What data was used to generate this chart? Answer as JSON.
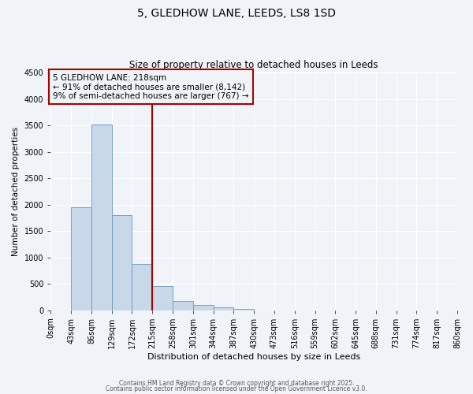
{
  "title": "5, GLEDHOW LANE, LEEDS, LS8 1SD",
  "subtitle": "Size of property relative to detached houses in Leeds",
  "xlabel": "Distribution of detached houses by size in Leeds",
  "ylabel": "Number of detached properties",
  "bin_edges": [
    0,
    43,
    86,
    129,
    172,
    215,
    258,
    301,
    344,
    387,
    430,
    473,
    516,
    559,
    602,
    645,
    688,
    731,
    774,
    817,
    860
  ],
  "bin_labels": [
    "0sqm",
    "43sqm",
    "86sqm",
    "129sqm",
    "172sqm",
    "215sqm",
    "258sqm",
    "301sqm",
    "344sqm",
    "387sqm",
    "430sqm",
    "473sqm",
    "516sqm",
    "559sqm",
    "602sqm",
    "645sqm",
    "688sqm",
    "731sqm",
    "774sqm",
    "817sqm",
    "860sqm"
  ],
  "counts": [
    0,
    1950,
    3520,
    1800,
    870,
    460,
    175,
    95,
    50,
    20,
    0,
    0,
    0,
    0,
    0,
    0,
    0,
    0,
    0,
    0
  ],
  "bar_color": "#c8d8e8",
  "bar_edgecolor": "#6699bb",
  "vline_x": 215,
  "vline_color": "#aa0000",
  "annotation_title": "5 GLEDHOW LANE: 218sqm",
  "annotation_line1": "← 91% of detached houses are smaller (8,142)",
  "annotation_line2": "9% of semi-detached houses are larger (767) →",
  "annotation_box_edgecolor": "#aa0000",
  "ylim": [
    0,
    4500
  ],
  "yticks": [
    0,
    500,
    1000,
    1500,
    2000,
    2500,
    3000,
    3500,
    4000,
    4500
  ],
  "background_color": "#f0f4f8",
  "grid_color": "#ffffff",
  "footer1": "Contains HM Land Registry data © Crown copyright and database right 2025.",
  "footer2": "Contains public sector information licensed under the Open Government Licence v3.0.",
  "title_fontsize": 10,
  "subtitle_fontsize": 8.5,
  "xlabel_fontsize": 8,
  "ylabel_fontsize": 7.5,
  "tick_fontsize": 7,
  "annotation_fontsize": 7.5,
  "footer_fontsize": 5.5
}
